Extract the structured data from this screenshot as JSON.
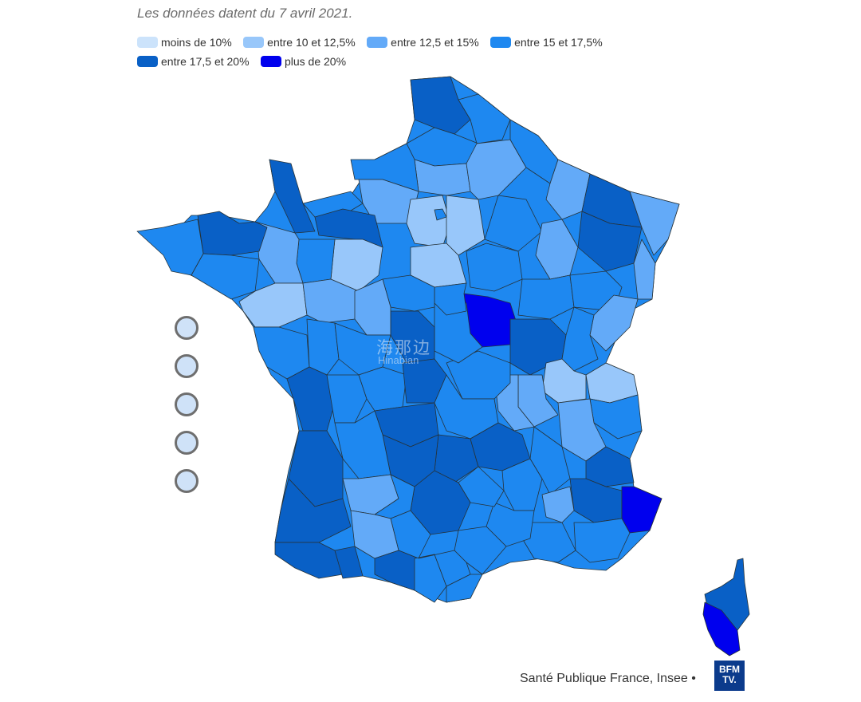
{
  "subtitle": "Les données datent du 7 avril 2021.",
  "legend": [
    {
      "label": "moins de 10%",
      "color": "#cce3fb"
    },
    {
      "label": "entre 10 et 12,5%",
      "color": "#98c7fa"
    },
    {
      "label": "entre 12,5 et 15%",
      "color": "#63aaf8"
    },
    {
      "label": "entre 15 et 17,5%",
      "color": "#1e88f0"
    },
    {
      "label": "entre 17,5 et 20%",
      "color": "#0960c6"
    },
    {
      "label": "plus de 20%",
      "color": "#0000ee"
    }
  ],
  "source": "Santé Publique France, Insee •",
  "logo": {
    "line1": "BFM",
    "line2": "TV."
  },
  "watermark": {
    "cn": "海那边",
    "en": "Hinabian"
  },
  "zoom_controls": [
    {
      "name": "zoom-in"
    },
    {
      "name": "zoom-out"
    },
    {
      "name": "zoom-reset"
    },
    {
      "name": "zoom-fit"
    },
    {
      "name": "zoom-home"
    }
  ]
}
